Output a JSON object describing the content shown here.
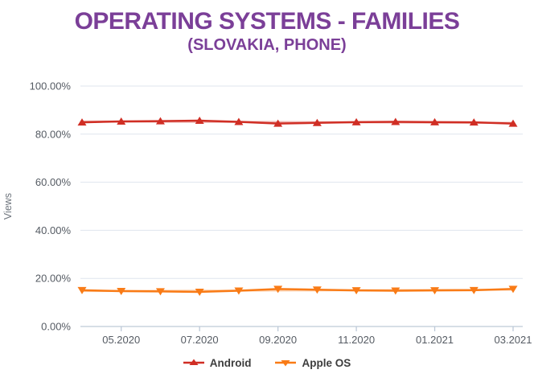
{
  "title": "OPERATING SYSTEMS - FAMILIES",
  "subtitle": "(SLOVAKIA, PHONE)",
  "colors": {
    "title": "#7b3f98",
    "background": "#ffffff",
    "grid": "#dfe5ee",
    "axis_line": "#bdc9d8",
    "tick_label": "#555b63",
    "axis_title": "#6e757d",
    "legend_text": "#3d3d3d",
    "android": "#d02e24",
    "apple": "#f97b16"
  },
  "chart_data": {
    "type": "line",
    "title": "OPERATING SYSTEMS - FAMILIES",
    "subtitle": "(SLOVAKIA, PHONE)",
    "xlabel": "",
    "ylabel": "Views",
    "ylim": [
      0,
      100
    ],
    "y_ticks": [
      0,
      20,
      40,
      60,
      80,
      100
    ],
    "y_tick_format": "percent-2dp",
    "grid": "horizontal",
    "legend_position": "bottom",
    "x_categories": [
      "04.2020",
      "05.2020",
      "06.2020",
      "07.2020",
      "08.2020",
      "09.2020",
      "10.2020",
      "11.2020",
      "12.2020",
      "01.2021",
      "02.2021",
      "03.2021"
    ],
    "x_tick_labels_shown": [
      "05.2020",
      "07.2020",
      "09.2020",
      "11.2020",
      "01.2021",
      "03.2021"
    ],
    "x_tick_indices": [
      1,
      3,
      5,
      7,
      9,
      11
    ],
    "series": [
      {
        "name": "Android",
        "color": "#d02e24",
        "marker": "triangle-up",
        "trendline": true,
        "values": [
          84.9,
          85.3,
          85.4,
          85.6,
          85.1,
          84.4,
          84.7,
          85.0,
          85.1,
          85.0,
          84.9,
          84.4
        ]
      },
      {
        "name": "Apple OS",
        "color": "#f97b16",
        "marker": "triangle-down",
        "trendline": true,
        "values": [
          15.1,
          14.7,
          14.6,
          14.4,
          14.9,
          15.6,
          15.3,
          15.0,
          14.9,
          15.0,
          15.1,
          15.6
        ]
      }
    ]
  }
}
